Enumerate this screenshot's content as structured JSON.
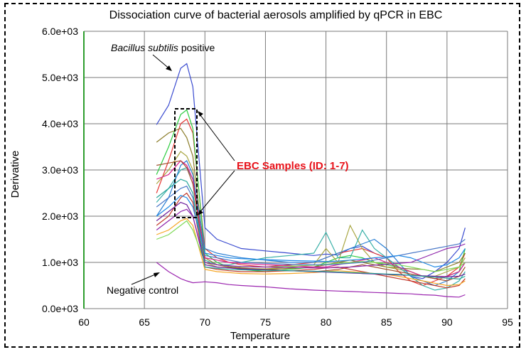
{
  "chart_data": {
    "type": "line",
    "title": "Dissociation curve of bacterial aerosols amplified by qPCR in EBC",
    "xlabel": "Temperature",
    "ylabel": "Derivative",
    "xlim": [
      60,
      95
    ],
    "ylim": [
      0,
      6000
    ],
    "x_ticks": [
      60,
      65,
      70,
      75,
      80,
      85,
      90,
      95
    ],
    "y_ticks": [
      "0.0e+03",
      "1.0e+03",
      "2.0e+03",
      "3.0e+03",
      "4.0e+03",
      "5.0e+03",
      "6.0e+03"
    ],
    "grid": true,
    "annotations": {
      "positive_prefix": "Bacillus subtilis",
      "positive_suffix": " positive",
      "samples": "EBC Samples (ID: 1-7)",
      "negative": "Negative control"
    },
    "colors": {
      "positive": "#3a4bd0",
      "negative": "#9c27b0",
      "samples_label": "#e8121a",
      "grid": "#7a7a7a",
      "y_axis": "#2e9e2e"
    },
    "x": [
      66,
      67,
      68,
      68.5,
      69,
      70,
      71,
      72,
      73,
      75,
      77,
      79,
      80,
      81,
      82,
      83,
      84,
      85,
      86,
      87,
      88,
      89,
      90,
      91,
      91.5
    ],
    "series": [
      {
        "values": [
          3980,
          4400,
          5200,
          5300,
          4800,
          1750,
          1500,
          1400,
          1300,
          1250,
          1200,
          1150,
          1180,
          1160,
          1300,
          1350,
          1200,
          1100,
          900,
          700,
          650,
          800,
          1000,
          1300,
          1750
        ],
        "color": "#3a4bd0"
      },
      {
        "values": [
          1000,
          800,
          650,
          600,
          560,
          580,
          560,
          520,
          500,
          470,
          430,
          400,
          390,
          380,
          370,
          360,
          350,
          340,
          330,
          320,
          300,
          290,
          260,
          250,
          300
        ],
        "color": "#9c27b0"
      },
      {
        "values": [
          2500,
          3200,
          4000,
          4100,
          3800,
          1300,
          1100,
          1000,
          950,
          900,
          950,
          1000,
          1100,
          1200,
          1250,
          1300,
          1200,
          1100,
          800,
          600,
          500,
          600,
          700,
          900,
          1200
        ],
        "color": "#e53935"
      },
      {
        "values": [
          2900,
          3500,
          4200,
          4300,
          3900,
          1200,
          1000,
          900,
          850,
          800,
          850,
          900,
          1000,
          1100,
          1150,
          1100,
          1000,
          950,
          900,
          800,
          700,
          650,
          700,
          800,
          1300
        ],
        "color": "#2ecc40"
      },
      {
        "values": [
          3600,
          3800,
          3900,
          3700,
          3300,
          1100,
          950,
          900,
          880,
          850,
          870,
          900,
          950,
          1000,
          1050,
          1000,
          950,
          900,
          880,
          860,
          850,
          800,
          900,
          1000,
          1200
        ],
        "color": "#8b7d2a"
      },
      {
        "values": [
          2700,
          3000,
          3400,
          3300,
          3000,
          1000,
          900,
          880,
          870,
          860,
          900,
          950,
          1300,
          1000,
          1800,
          1300,
          1000,
          900,
          850,
          800,
          700,
          700,
          800,
          900,
          1100
        ],
        "color": "#a8a642"
      },
      {
        "values": [
          2300,
          2600,
          3000,
          3050,
          2800,
          1050,
          950,
          950,
          1000,
          1100,
          1150,
          1200,
          1650,
          1100,
          1100,
          1700,
          1300,
          1100,
          900,
          700,
          500,
          400,
          450,
          600,
          800
        ],
        "color": "#3ab0a8"
      },
      {
        "values": [
          2000,
          2400,
          3100,
          3200,
          2900,
          1300,
          1200,
          1150,
          1100,
          1050,
          1000,
          1000,
          1100,
          1200,
          1300,
          1400,
          1500,
          1300,
          1000,
          700,
          600,
          500,
          600,
          800,
          1000
        ],
        "color": "#2a7fd4"
      },
      {
        "values": [
          2800,
          2900,
          3200,
          3100,
          2800,
          1100,
          1050,
          1000,
          980,
          950,
          930,
          900,
          900,
          950,
          1000,
          1050,
          1100,
          1000,
          900,
          800,
          700,
          650,
          700,
          800,
          1000
        ],
        "color": "#d81b8a"
      },
      {
        "values": [
          3100,
          3150,
          3200,
          3050,
          2700,
          1000,
          950,
          900,
          870,
          850,
          820,
          800,
          820,
          850,
          900,
          950,
          900,
          850,
          800,
          750,
          700,
          650,
          600,
          700,
          900
        ],
        "color": "#a0522d"
      },
      {
        "values": [
          1800,
          2000,
          2400,
          2500,
          2300,
          900,
          850,
          820,
          800,
          800,
          820,
          850,
          880,
          900,
          850,
          800,
          750,
          700,
          650,
          600,
          550,
          500,
          450,
          500,
          650
        ],
        "color": "#c0392b"
      },
      {
        "values": [
          1600,
          1700,
          1900,
          1950,
          1800,
          850,
          800,
          780,
          760,
          750,
          760,
          780,
          800,
          820,
          800,
          780,
          760,
          740,
          700,
          650,
          600,
          550,
          500,
          520,
          600
        ],
        "color": "#f5a623"
      },
      {
        "values": [
          1500,
          1600,
          1800,
          1900,
          1700,
          1000,
          950,
          920,
          900,
          900,
          920,
          940,
          960,
          980,
          1000,
          1020,
          1000,
          980,
          950,
          900,
          850,
          800,
          850,
          900,
          1000
        ],
        "color": "#7ed957"
      },
      {
        "values": [
          1900,
          2100,
          2300,
          2250,
          2000,
          950,
          900,
          880,
          860,
          840,
          820,
          800,
          790,
          780,
          770,
          760,
          750,
          740,
          730,
          720,
          710,
          700,
          690,
          700,
          750
        ],
        "color": "#6a1b9a"
      },
      {
        "values": [
          2200,
          2400,
          2600,
          2650,
          2400,
          1150,
          1100,
          1050,
          1000,
          980,
          960,
          950,
          950,
          960,
          980,
          1000,
          1050,
          1100,
          1150,
          1200,
          1250,
          1300,
          1350,
          1400,
          1500
        ],
        "color": "#4a78c8"
      },
      {
        "values": [
          2000,
          2200,
          2450,
          2400,
          2200,
          1200,
          1150,
          1100,
          1080,
          1060,
          1040,
          1030,
          1020,
          1030,
          1050,
          1070,
          1100,
          1120,
          1150,
          1100,
          1000,
          900,
          950,
          1100,
          1300
        ],
        "color": "#1e88e5"
      },
      {
        "values": [
          1700,
          1900,
          2100,
          2150,
          2000,
          1000,
          950,
          930,
          910,
          900,
          890,
          880,
          880,
          890,
          900,
          920,
          940,
          960,
          980,
          1000,
          1100,
          1200,
          1300,
          1350,
          1400
        ],
        "color": "#8e24aa"
      },
      {
        "values": [
          2400,
          2600,
          2800,
          2750,
          2500,
          900,
          870,
          850,
          840,
          830,
          820,
          810,
          800,
          790,
          780,
          770,
          760,
          750,
          740,
          720,
          700,
          680,
          660,
          640,
          700
        ],
        "color": "#26a69a"
      }
    ]
  }
}
